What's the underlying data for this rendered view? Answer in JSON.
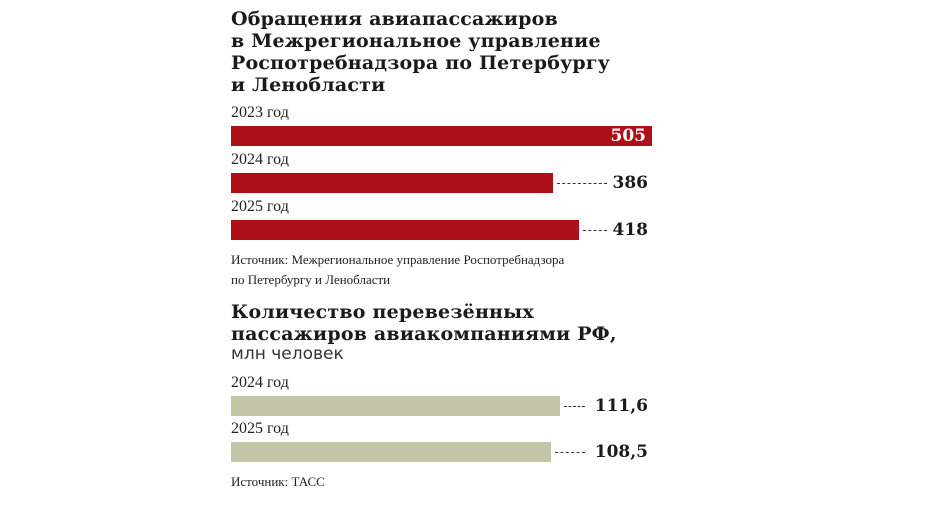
{
  "chart_data": [
    {
      "type": "bar",
      "orientation": "horizontal",
      "title": "Обращения авиапассажиров в Межрегиональное управление Роспотребнадзора по Петербургу и Ленобласти",
      "title_lines": [
        "Обращения авиапассажиров",
        "в Межрегиональное управление",
        "Роспотребнадзора по Петербургу",
        "и Ленобласти"
      ],
      "categories": [
        "2023 год",
        "2024 год",
        "2025 год"
      ],
      "values": [
        505,
        386,
        418
      ],
      "value_labels": [
        "505",
        "386",
        "418"
      ],
      "color": "#ae1019",
      "source": [
        "Источник: Межрегиональное управление Роспотребнадзора",
        "по Петербургу и Ленобласти"
      ]
    },
    {
      "type": "bar",
      "orientation": "horizontal",
      "title": "Количество перевезённых пассажиров авиакомпаниями РФ,",
      "title_lines": [
        "Количество перевезённых",
        "пассажиров авиакомпаниями РФ,"
      ],
      "subtitle": "млн человек",
      "categories": [
        "2024 год",
        "2025 год"
      ],
      "values": [
        111.6,
        108.5
      ],
      "value_labels": [
        "111,6",
        "108,5"
      ],
      "color": "#c2c6a6",
      "source": [
        "Источник: ТАСС"
      ]
    }
  ]
}
